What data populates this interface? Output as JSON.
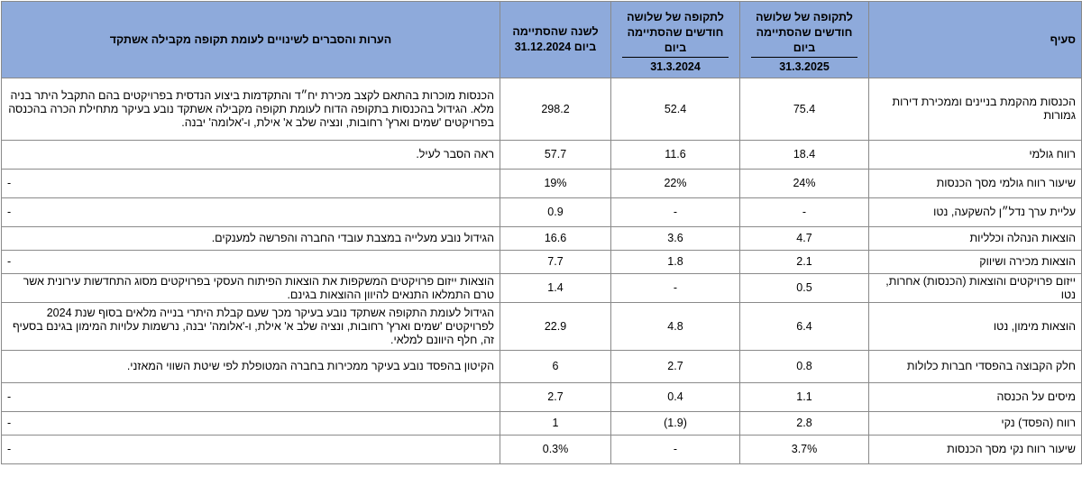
{
  "header": {
    "section": "סעיף",
    "q2025_top": "לתקופה של שלושה חודשים שהסתיימה ביום",
    "q2025_date": "31.3.2025",
    "q2024_top": "לתקופה של שלושה חודשים שהסתיימה ביום",
    "q2024_date": "31.3.2024",
    "year": "לשנה שהסתיימה ביום 31.12.2024",
    "notes": "הערות והסברים לשינויים לעומת תקופה מקבילה אשתקד"
  },
  "rows": [
    {
      "section": "הכנסות מהקמת בניינים וממכירת דירות גמורות",
      "q2025": "75.4",
      "q2024": "52.4",
      "year": "298.2",
      "notes": "הכנסות מוכרות בהתאם לקצב מכירת יח״ד והתקדמות ביצוע הנדסית בפרויקטים בהם התקבל היתר בניה מלא. הגידול בהכנסות בתקופה הדוח לעומת תקופה מקבילה אשתקד נובע בעיקר מתחילת הכרה בהכנסה בפרויקטים 'שמים וארץ' רחובות, ונציה שלב א' אילת, ו-'אלומה' יבנה."
    },
    {
      "section": "רווח גולמי",
      "q2025": "18.4",
      "q2024": "11.6",
      "year": "57.7",
      "notes": "ראה הסבר לעיל."
    },
    {
      "section": "שיעור רווח גולמי מסך הכנסות",
      "q2025": "24%",
      "q2024": "22%",
      "year": "19%",
      "notes": "-"
    },
    {
      "section": "עליית ערך נדל״ן להשקעה, נטו",
      "q2025": "-",
      "q2024": "-",
      "year": "0.9",
      "notes": "-"
    },
    {
      "section": "הוצאות הנהלה וכלליות",
      "q2025": "4.7",
      "q2024": "3.6",
      "year": "16.6",
      "notes": "הגידול נובע מעלייה במצבת עובדי החברה והפרשה למענקים."
    },
    {
      "section": "הוצאות מכירה ושיווק",
      "q2025": "2.1",
      "q2024": "1.8",
      "year": "7.7",
      "notes": "-"
    },
    {
      "section": "ייזום פרויקטים והוצאות (הכנסות) אחרות, נטו",
      "q2025": "0.5",
      "q2024": "-",
      "year": "1.4",
      "notes": "הוצאות ייזום פרויקטים המשקפות את הוצאות הפיתוח העסקי בפרויקטים מסוג התחדשות עירונית אשר טרם התמלאו התנאים להיוון ההוצאות בגינם."
    },
    {
      "section": "הוצאות מימון, נטו",
      "q2025": "6.4",
      "q2024": "4.8",
      "year": "22.9",
      "notes": "הגידול לעומת התקופה אשתקד נובע בעיקר מכך שעם קבלת היתרי בנייה מלאים בסוף שנת 2024 לפרויקטים 'שמים וארץ' רחובות, ונציה שלב א' אילת, ו-'אלומה' יבנה, נרשמות עלויות המימון בגינם בסעיף זה, חלף היוונם למלאי."
    },
    {
      "section": "חלק הקבוצה בהפסדי חברות כלולות",
      "q2025": "0.8",
      "q2024": "2.7",
      "year": "6",
      "notes": "הקיטון בהפסד נובע בעיקר ממכירות בחברה המטופלת לפי שיטת השווי המאזני."
    },
    {
      "section": "מיסים על הכנסה",
      "q2025": "1.1",
      "q2024": "0.4",
      "year": "2.7",
      "notes": "-"
    },
    {
      "section": "רווח (הפסד) נקי",
      "q2025": "2.8",
      "q2024": "(1.9)",
      "year": "1",
      "notes": "-"
    },
    {
      "section": "שיעור רווח נקי מסך הכנסות",
      "q2025": "3.7%",
      "q2024": "-",
      "year": "0.3%",
      "notes": "-"
    }
  ]
}
